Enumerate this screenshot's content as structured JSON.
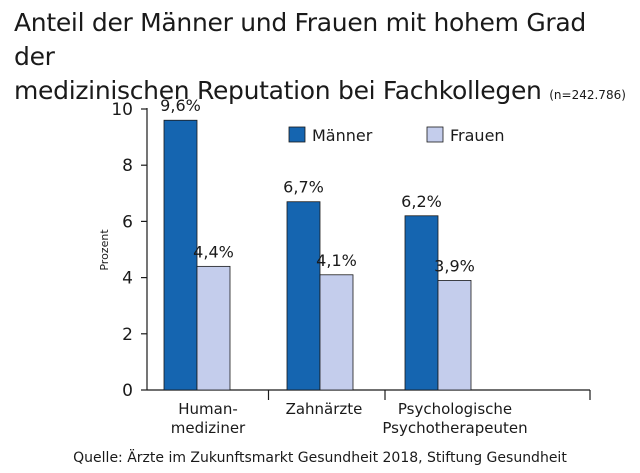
{
  "chart_data": {
    "type": "bar",
    "title_line1": "Anteil der Männer und Frauen mit hohem Grad der",
    "title_line2": "medizinischen Reputation bei Fachkollegen",
    "title_note": "(n=242.786)",
    "ylabel": "Prozent",
    "ylim": [
      0,
      10
    ],
    "yticks": [
      "0",
      "2",
      "4",
      "6",
      "8",
      "10"
    ],
    "categories": [
      [
        "Human-",
        "mediziner"
      ],
      [
        "Zahnärzte"
      ],
      [
        "Psychologische",
        "Psychotherapeuten"
      ]
    ],
    "series": [
      {
        "name": "Männer",
        "color": "#1565b0",
        "values": [
          9.6,
          6.7,
          6.2
        ],
        "labels": [
          "9,6%",
          "6,7%",
          "6,2%"
        ]
      },
      {
        "name": "Frauen",
        "color": "#c4cdec",
        "values": [
          4.4,
          4.1,
          3.9
        ],
        "labels": [
          "4,4%",
          "4,1%",
          "3,9%"
        ]
      }
    ],
    "legend_position": "top-right",
    "source": "Quelle:  Ärzte im Zukunftsmarkt Gesundheit 2018, Stiftung Gesundheit"
  }
}
